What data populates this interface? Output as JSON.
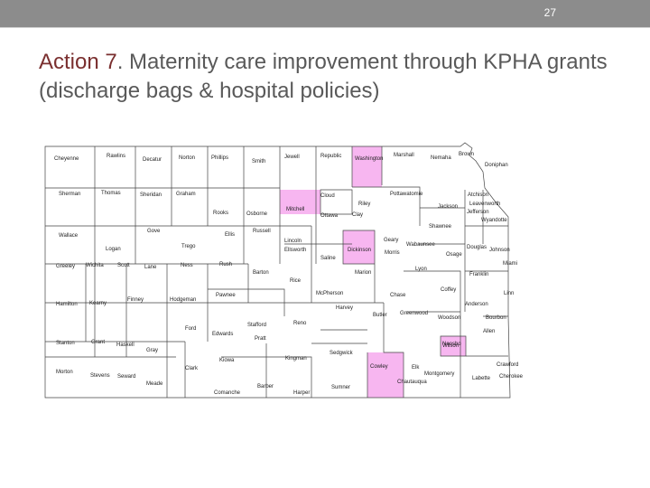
{
  "slide": {
    "number": "27",
    "title_lead": "Action 7",
    "title_rest": ". Maternity care improvement through KPHA grants (discharge bags & hospital policies)"
  },
  "map": {
    "highlight_color": "#f7b6f0",
    "highlighted": [
      "Mitchell",
      "Nemaha",
      "Dickinson",
      "Cowley",
      "Neosho"
    ],
    "counties": [
      "Cheyenne",
      "Rawlins",
      "Decatur",
      "Norton",
      "Phillips",
      "Smith",
      "Jewell",
      "Republic",
      "Washington",
      "Marshall",
      "Nemaha",
      "Brown",
      "Doniphan",
      "Sherman",
      "Thomas",
      "Sheridan",
      "Graham",
      "Rooks",
      "Osborne",
      "Mitchell",
      "Cloud",
      "Clay",
      "Riley",
      "Pottawatomie",
      "Jackson",
      "Atchison",
      "Jefferson",
      "Leavenworth",
      "Wyandotte",
      "Wallace",
      "Logan",
      "Gove",
      "Trego",
      "Ellis",
      "Russell",
      "Lincoln",
      "Ottawa",
      "Ellsworth",
      "Saline",
      "Dickinson",
      "Geary",
      "Wabaunsee",
      "Shawnee",
      "Douglas",
      "Johnson",
      "Greeley",
      "Wichita",
      "Scott",
      "Lane",
      "Ness",
      "Rush",
      "Barton",
      "Rice",
      "McPherson",
      "Marion",
      "Morris",
      "Lyon",
      "Osage",
      "Franklin",
      "Miami",
      "Hamilton",
      "Kearny",
      "Finney",
      "Hodgeman",
      "Pawnee",
      "Stafford",
      "Reno",
      "Harvey",
      "Butler",
      "Chase",
      "Greenwood",
      "Coffey",
      "Anderson",
      "Linn",
      "Stanton",
      "Grant",
      "Haskell",
      "Gray",
      "Ford",
      "Edwards",
      "Pratt",
      "Kingman",
      "Sedgwick",
      "Elk",
      "Woodson",
      "Allen",
      "Bourbon",
      "Morton",
      "Stevens",
      "Seward",
      "Meade",
      "Clark",
      "Kiowa",
      "Comanche",
      "Barber",
      "Harper",
      "Sumner",
      "Cowley",
      "Chautauqua",
      "Montgomery",
      "Wilson",
      "Neosho",
      "Labette",
      "Crawford",
      "Cherokee"
    ]
  }
}
